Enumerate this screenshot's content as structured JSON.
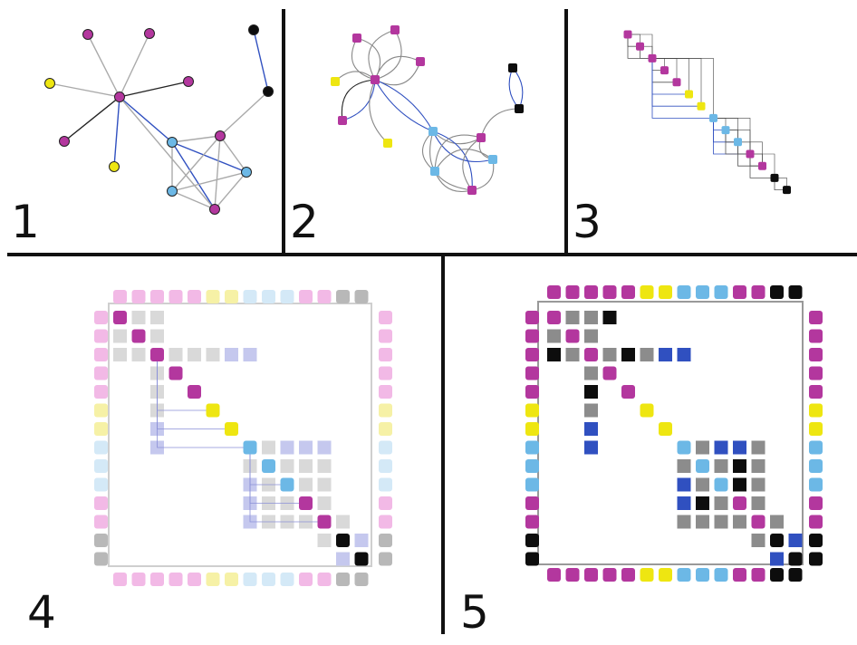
{
  "panels": [
    {
      "id": "1",
      "label": "1"
    },
    {
      "id": "2",
      "label": "2"
    },
    {
      "id": "3",
      "label": "3"
    },
    {
      "id": "4",
      "label": "4"
    },
    {
      "id": "5",
      "label": "5"
    }
  ],
  "palette": {
    "magenta": "#b3379e",
    "yellow": "#eee611",
    "cyan": "#6cb8e6",
    "black": "#0d0d0d",
    "gray": "#8c8c8c",
    "blue": "#3050c0",
    "divider": "#111111"
  },
  "node_sequence": [
    "magenta",
    "magenta",
    "magenta",
    "magenta",
    "magenta",
    "yellow",
    "yellow",
    "cyan",
    "cyan",
    "cyan",
    "magenta",
    "magenta",
    "black",
    "black"
  ]
}
